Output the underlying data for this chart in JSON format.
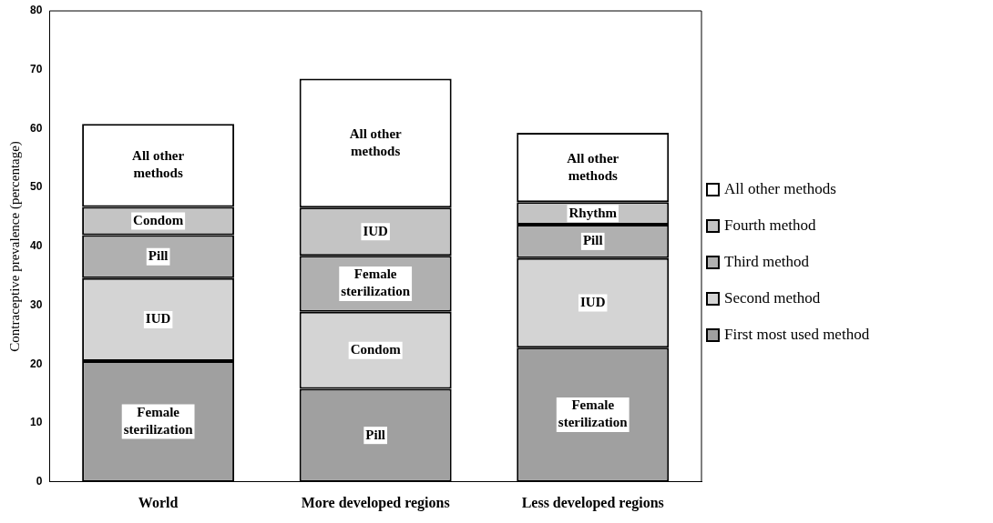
{
  "chart_data": {
    "type": "bar",
    "stacked": true,
    "categories": [
      "World",
      "More developed regions",
      "Less developed regions"
    ],
    "ylabel": "Contraceptive prevalence (percentage)",
    "series": [
      {
        "name": "First most used method",
        "color": "#a0a0a0",
        "values": [
          20.5,
          15.8,
          22.8
        ],
        "value_labels": [
          "Female sterilization",
          "Pill",
          "Female sterilization"
        ]
      },
      {
        "name": "Second method",
        "color": "#d4d4d4",
        "values": [
          14.1,
          13.1,
          15.2
        ],
        "value_labels": [
          "IUD",
          "Condom",
          "IUD"
        ]
      },
      {
        "name": "Third method",
        "color": "#b0b0b0",
        "values": [
          7.3,
          9.5,
          5.7
        ],
        "value_labels": [
          "Pill",
          "Female sterilization",
          "Pill"
        ]
      },
      {
        "name": "Fourth method",
        "color": "#c4c4c4",
        "values": [
          4.8,
          8.2,
          3.8
        ],
        "value_labels": [
          "Condom",
          "IUD",
          "Rhythm"
        ]
      },
      {
        "name": "All other methods",
        "color": "#ffffff",
        "values": [
          14.1,
          21.9,
          11.8
        ],
        "value_labels": [
          "All other methods",
          "All other methods",
          "All other methods"
        ]
      }
    ],
    "ylim": [
      0,
      80
    ],
    "yticks": [
      0,
      10,
      20,
      30,
      40,
      50,
      60,
      70,
      80
    ],
    "grid": false,
    "legend": "right"
  }
}
